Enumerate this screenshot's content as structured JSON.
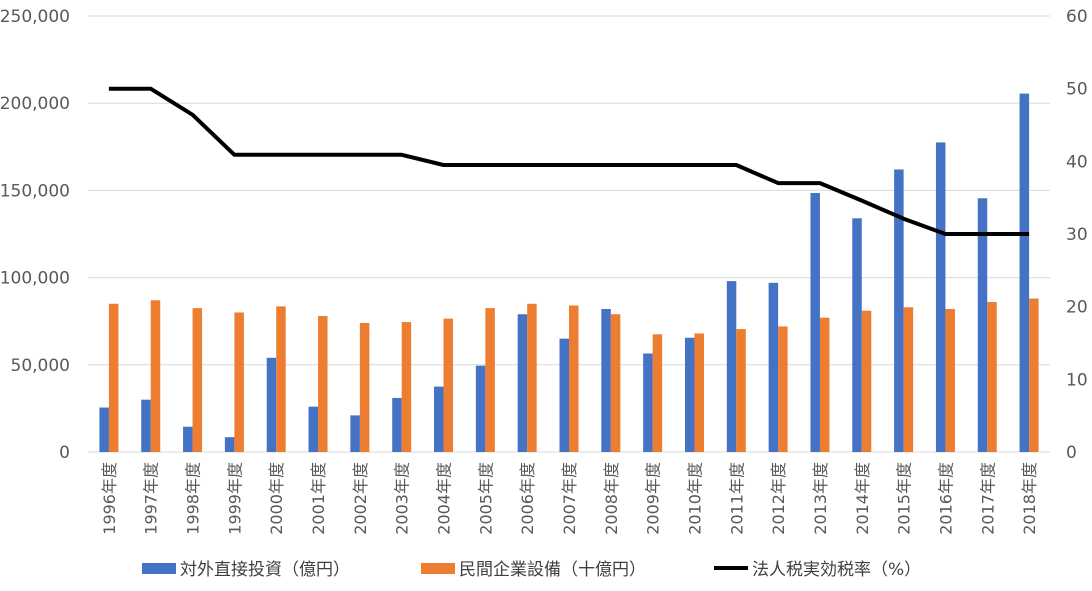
{
  "chart_data": {
    "type": "bar",
    "categories": [
      "1996年度",
      "1997年度",
      "1998年度",
      "1999年度",
      "2000年度",
      "2001年度",
      "2002年度",
      "2003年度",
      "2004年度",
      "2005年度",
      "2006年度",
      "2007年度",
      "2008年度",
      "2009年度",
      "2010年度",
      "2011年度",
      "2012年度",
      "2013年度",
      "2014年度",
      "2015年度",
      "2016年度",
      "2017年度",
      "2018年度"
    ],
    "series": [
      {
        "name": "対外直接投資（億円）",
        "kind": "bar",
        "axis": "left",
        "color": "#4472c4",
        "values": [
          25500,
          30000,
          14500,
          8500,
          54000,
          26000,
          21000,
          31000,
          37500,
          49500,
          79000,
          65000,
          82000,
          56500,
          65500,
          98000,
          97000,
          148500,
          134000,
          162000,
          177500,
          145500,
          205500
        ]
      },
      {
        "name": "民間企業設備（十億円）",
        "kind": "bar",
        "axis": "left",
        "color": "#ed7d31",
        "values": [
          85000,
          87000,
          82500,
          80000,
          83500,
          78000,
          74000,
          74500,
          76500,
          82500,
          85000,
          84000,
          79000,
          67500,
          68000,
          70500,
          72000,
          77000,
          81000,
          83000,
          82000,
          86000,
          88000
        ]
      },
      {
        "name": "法人税実効税率（%）",
        "kind": "line",
        "axis": "right",
        "color": "#000000",
        "values": [
          50.0,
          50.0,
          46.4,
          40.9,
          40.9,
          40.9,
          40.9,
          40.9,
          39.5,
          39.5,
          39.5,
          39.5,
          39.5,
          39.5,
          39.5,
          39.5,
          37.0,
          37.0,
          34.6,
          32.1,
          30.0,
          30.0,
          30.0
        ]
      }
    ],
    "y_left": {
      "min": 0,
      "max": 250000,
      "ticks": [
        "0",
        "50,000",
        "100,000",
        "150,000",
        "200,000",
        "250,000"
      ]
    },
    "y_right": {
      "min": 0,
      "max": 60,
      "ticks": [
        "0",
        "10",
        "20",
        "30",
        "40",
        "50",
        "60"
      ]
    },
    "grid": true,
    "legend_position": "bottom"
  },
  "colors": {
    "grid": "#d9d9d9",
    "axis_text": "#595959"
  }
}
